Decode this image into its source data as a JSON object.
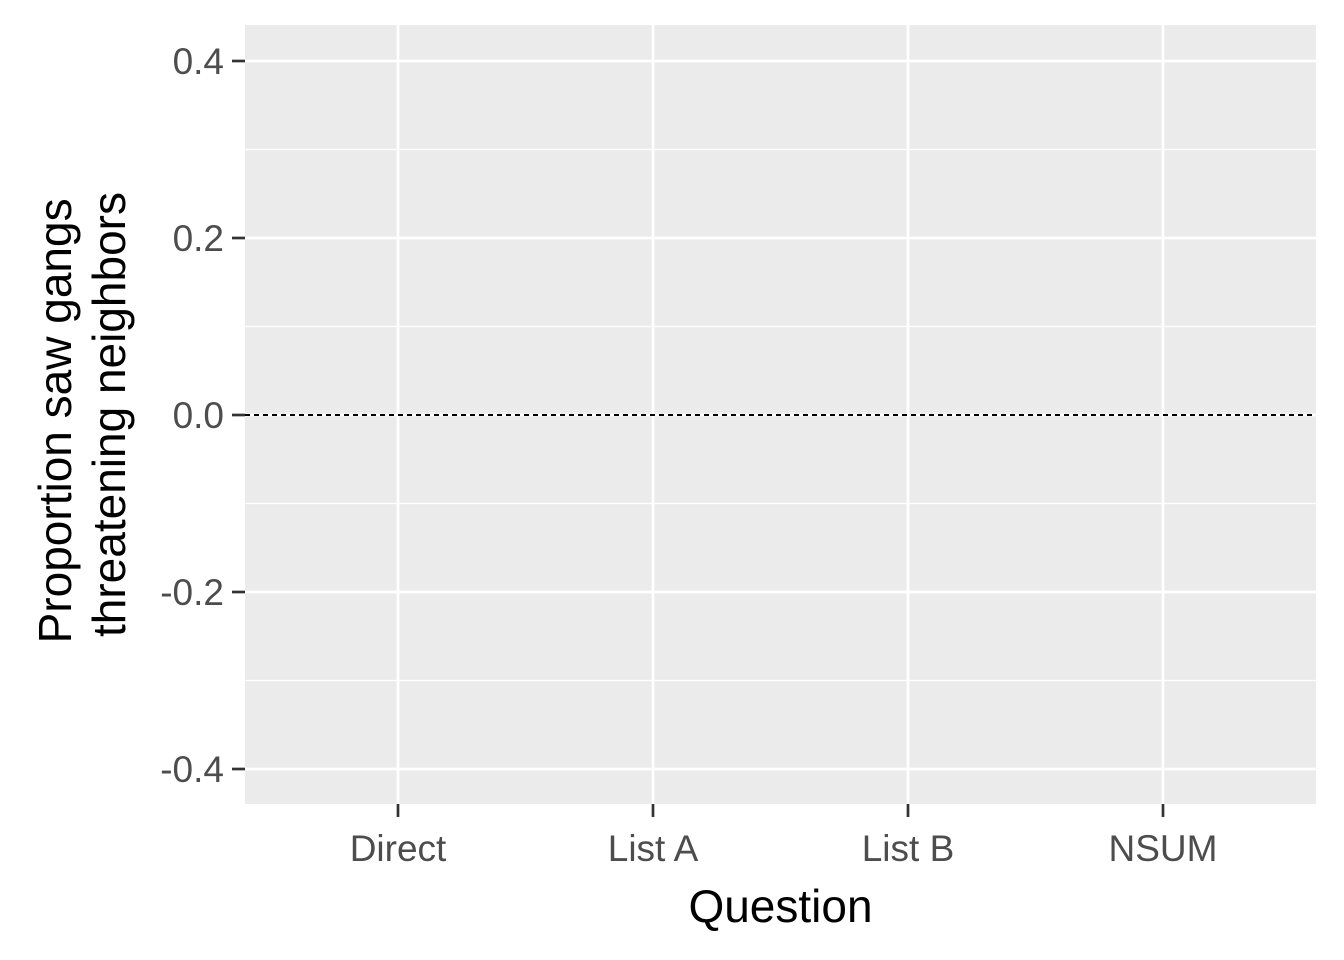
{
  "chart_data": {
    "type": "scatter",
    "categories": [
      "Direct",
      "List A",
      "List B",
      "NSUM"
    ],
    "values": [],
    "xlabel": "Question",
    "ylabel": [
      "Proportion saw gangs",
      "threatening neighbors"
    ],
    "ylim": [
      -0.4,
      0.4
    ],
    "yticks": [
      -0.4,
      -0.2,
      0.0,
      0.2,
      0.4
    ],
    "ytick_labels": [
      "-0.4",
      "-0.2",
      "0.0",
      "0.2",
      "0.4"
    ],
    "reference_line": {
      "y": 0,
      "style": "dashed"
    },
    "grid": true,
    "panel_color": "#ebebeb"
  }
}
